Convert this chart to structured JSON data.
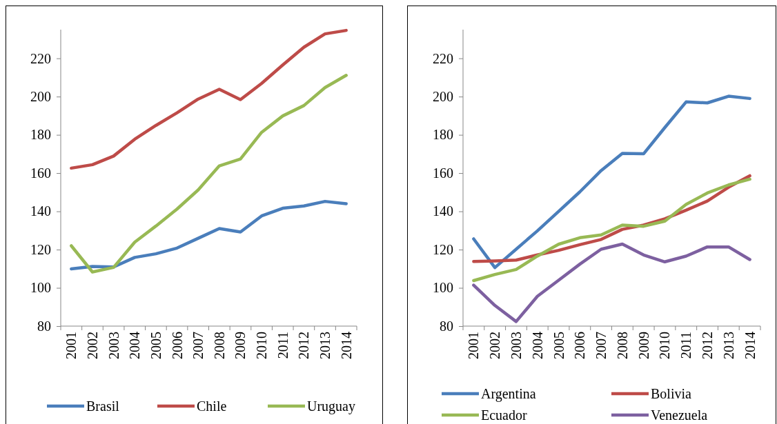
{
  "chart_data": [
    {
      "type": "line",
      "categories": [
        "2001",
        "2002",
        "2003",
        "2004",
        "2005",
        "2006",
        "2007",
        "2008",
        "2009",
        "2010",
        "2011",
        "2012",
        "2013",
        "2014"
      ],
      "ylim": [
        80,
        235
      ],
      "yticks": [
        80,
        100,
        120,
        140,
        160,
        180,
        200,
        220
      ],
      "legend": "bottom",
      "line_style": "solid",
      "marker": "none",
      "series": [
        {
          "name": "Brasil",
          "color": "#4a7ebb",
          "values": [
            109.9,
            111.2,
            110.9,
            115.9,
            117.8,
            120.8,
            125.9,
            131.0,
            129.2,
            137.6,
            141.6,
            142.8,
            145.2,
            144.0
          ]
        },
        {
          "name": "Chile",
          "color": "#be4b48",
          "values": [
            162.6,
            164.4,
            168.9,
            177.7,
            184.9,
            191.5,
            198.7,
            203.8,
            198.4,
            206.9,
            216.5,
            225.8,
            232.8,
            234.6
          ]
        },
        {
          "name": "Uruguay",
          "color": "#98b954",
          "values": [
            122.0,
            108.3,
            110.7,
            123.9,
            132.3,
            141.2,
            151.2,
            163.8,
            167.4,
            181.3,
            189.9,
            195.3,
            204.7,
            211.1
          ]
        }
      ]
    },
    {
      "type": "line",
      "categories": [
        "2001",
        "2002",
        "2003",
        "2004",
        "2005",
        "2006",
        "2007",
        "2008",
        "2009",
        "2010",
        "2011",
        "2012",
        "2013",
        "2014"
      ],
      "ylim": [
        80,
        235
      ],
      "yticks": [
        80,
        100,
        120,
        140,
        160,
        180,
        200,
        220
      ],
      "legend": "bottom",
      "line_style": "solid",
      "marker": "none",
      "series": [
        {
          "name": "Argentina",
          "color": "#4a7ebb",
          "values": [
            125.6,
            110.6,
            120.2,
            129.8,
            140.0,
            150.2,
            161.3,
            170.3,
            170.1,
            183.8,
            197.2,
            196.7,
            200.2,
            199.0
          ]
        },
        {
          "name": "Bolivia",
          "color": "#be4b48",
          "values": [
            113.8,
            114.1,
            114.5,
            117.2,
            119.6,
            122.6,
            125.3,
            130.6,
            132.8,
            136.1,
            140.6,
            145.4,
            152.6,
            158.6
          ]
        },
        {
          "name": "Ecuador",
          "color": "#98b954",
          "values": [
            103.8,
            107.0,
            109.6,
            116.6,
            122.8,
            126.2,
            127.7,
            132.8,
            132.2,
            134.9,
            143.6,
            149.6,
            153.8,
            156.8
          ]
        },
        {
          "name": "Venezuela",
          "color": "#7d60a0",
          "values": [
            101.4,
            90.8,
            82.4,
            95.6,
            104.0,
            112.4,
            120.2,
            122.9,
            117.2,
            113.6,
            116.6,
            121.4,
            121.4,
            114.8
          ]
        }
      ]
    }
  ]
}
